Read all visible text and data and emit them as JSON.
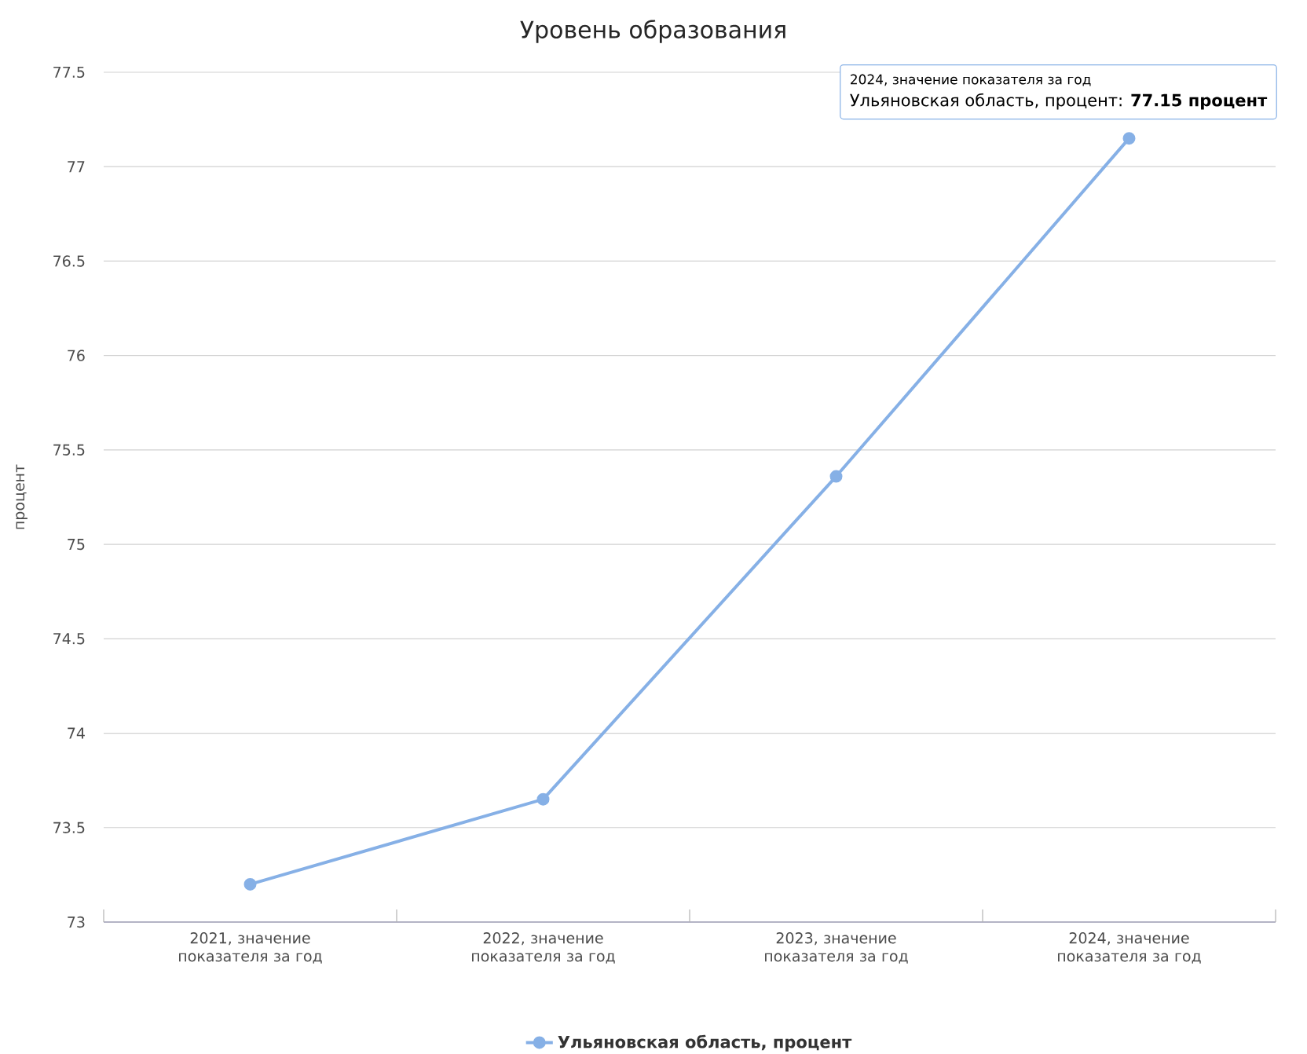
{
  "chart_data": {
    "type": "line",
    "title": "Уровень образования",
    "ylabel": "процент",
    "categories": [
      "2021, значение показателя за год",
      "2022, значение показателя за год",
      "2023, значение показателя за год",
      "2024, значение показателя за год"
    ],
    "series": [
      {
        "name": "Ульяновская область, процент",
        "color": "#86b0e6",
        "values": [
          73.2,
          73.65,
          75.36,
          77.15
        ]
      }
    ],
    "ylim": [
      73,
      77.5
    ],
    "yticks": [
      73,
      73.5,
      74,
      74.5,
      75,
      75.5,
      76,
      76.5,
      77,
      77.5
    ],
    "grid": "y",
    "legend": "bottom",
    "marker": "circle",
    "line_style": "solid",
    "annotations": [
      "2024, значение показателя за год",
      {
        "text": "Ульяновская область, процент: **77.15 процент**",
        "x": "2024, значение показателя за год",
        "y": 77.15
      }
    ]
  }
}
